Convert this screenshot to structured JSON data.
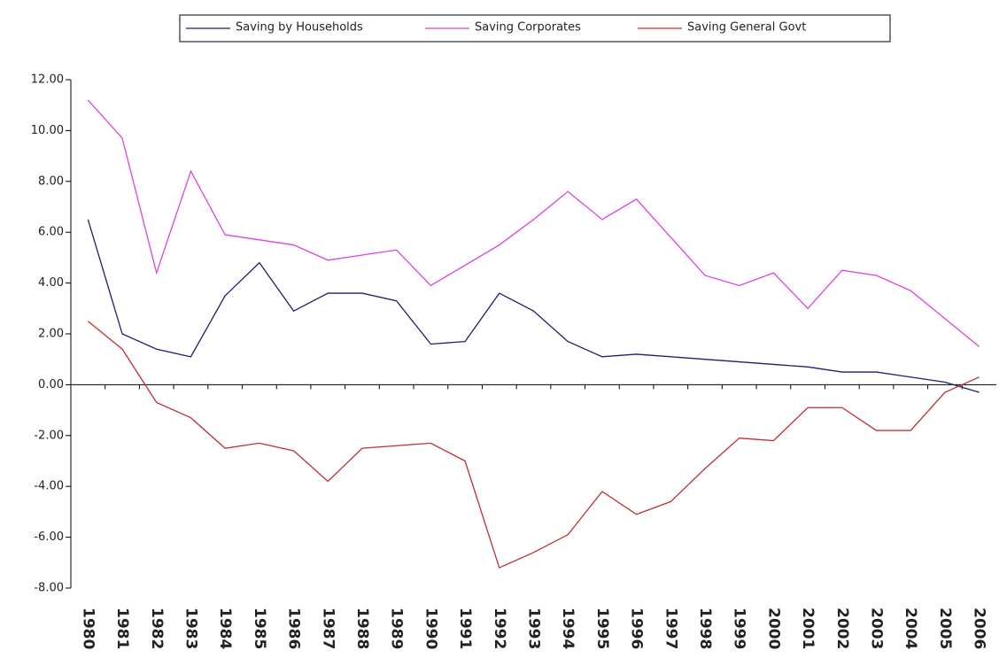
{
  "chart_data": {
    "type": "line",
    "categories": [
      "1980",
      "1981",
      "1982",
      "1983",
      "1984",
      "1985",
      "1986",
      "1987",
      "1988",
      "1989",
      "1990",
      "1991",
      "1992",
      "1993",
      "1994",
      "1995",
      "1996",
      "1997",
      "1998",
      "1999",
      "2000",
      "2001",
      "2002",
      "2003",
      "2004",
      "2005",
      "2006"
    ],
    "series": [
      {
        "name": "Saving by Households",
        "color": "#1f1f6e",
        "values": [
          6.5,
          2.0,
          1.4,
          1.1,
          3.5,
          4.8,
          2.9,
          3.6,
          3.6,
          3.3,
          1.6,
          1.7,
          3.6,
          2.9,
          1.7,
          1.1,
          1.2,
          1.1,
          1.0,
          0.9,
          0.8,
          0.7,
          0.5,
          0.5,
          0.3,
          0.1,
          -0.3
        ]
      },
      {
        "name": "Saving Corporates",
        "color": "#e040e0",
        "values": [
          11.2,
          9.7,
          4.4,
          8.4,
          5.9,
          5.7,
          5.5,
          4.9,
          5.1,
          5.3,
          3.9,
          4.7,
          5.5,
          6.5,
          7.6,
          6.5,
          7.3,
          5.8,
          4.3,
          3.9,
          4.4,
          3.0,
          4.5,
          4.3,
          3.7,
          2.6,
          1.5
        ]
      },
      {
        "name": "Saving General Govt",
        "color": "#c03030",
        "values": [
          2.5,
          1.4,
          -0.7,
          -1.3,
          -2.5,
          -2.3,
          -2.6,
          -3.8,
          -2.5,
          -2.4,
          -2.3,
          -3.0,
          -7.2,
          -6.6,
          -5.9,
          -4.2,
          -5.1,
          -4.6,
          -3.3,
          -2.1,
          -2.2,
          -0.9,
          -0.9,
          -1.8,
          -1.8,
          -0.3,
          0.3
        ]
      }
    ],
    "ylim": [
      -8,
      12
    ],
    "yticks": [
      {
        "value": -8,
        "label": "-8.00"
      },
      {
        "value": -6,
        "label": "-6.00"
      },
      {
        "value": -4,
        "label": "-4.00"
      },
      {
        "value": -2,
        "label": "-2.00"
      },
      {
        "value": 0,
        "label": "0.00"
      },
      {
        "value": 2,
        "label": "2.00"
      },
      {
        "value": 4,
        "label": "4.00"
      },
      {
        "value": 6,
        "label": "6.00"
      },
      {
        "value": 8,
        "label": "8.00"
      },
      {
        "value": 10,
        "label": "10.00"
      },
      {
        "value": 12,
        "label": "12.00"
      }
    ],
    "legend": "top"
  }
}
